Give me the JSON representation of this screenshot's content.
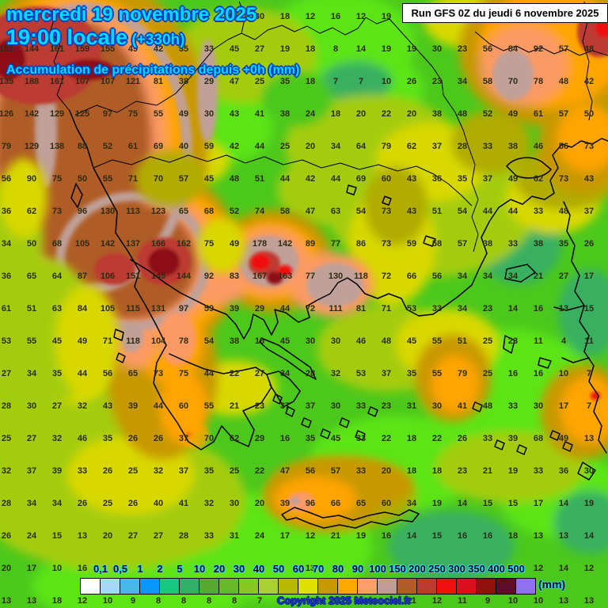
{
  "header": {
    "line1": "mercredi 19 novembre 2025",
    "line2": "19:00 locale",
    "line2_suffix": " (+330h)",
    "line3": "Accumulation de précipitations depuis +0h (mm)"
  },
  "run_box": {
    "text": "Run GFS 0Z du jeudi 6 novembre 2025"
  },
  "copyright": "Copyright 2025 Meteociel.fr",
  "legend": {
    "unit": "(mm)",
    "labels": [
      "0,1",
      "0,5",
      "1",
      "2",
      "5",
      "10",
      "20",
      "30",
      "40",
      "50",
      "60",
      "70",
      "80",
      "90",
      "100",
      "150",
      "200",
      "250",
      "300",
      "350",
      "400",
      "500"
    ],
    "swatch_colors": [
      "#ffffff",
      "#a8d8f8",
      "#48b8e8",
      "#0898ff",
      "#18c880",
      "#30b068",
      "#58a830",
      "#68b828",
      "#88c820",
      "#a8d030",
      "#b8b800",
      "#e0e000",
      "#c89800",
      "#ffa800",
      "#fc9e68",
      "#c49a94",
      "#b05c28",
      "#bc3a30",
      "#f01010",
      "#d81020",
      "#901010",
      "#600c28",
      "#9070f0"
    ]
  },
  "colors": {
    "header_text": "#00dcff",
    "header_outline": "#0040c0",
    "copyright_text": "#2030d8",
    "number_text": "#2c2c14",
    "map_base_green": "#4cc81c",
    "map_bright_green": "#5ce414",
    "map_teal_green": "#38b060",
    "map_yellow_green": "#a4cc10",
    "map_yellow": "#d8d800",
    "map_olive": "#b0ac00",
    "map_mustard": "#c89800",
    "map_orange": "#ffa400",
    "map_salmon": "#fc9a64",
    "map_rose_gray": "#c0a098",
    "map_sienna": "#b05c28",
    "map_brick": "#bc3a30",
    "map_red": "#f01010",
    "map_dark_red": "#8c0e14"
  },
  "map_numbers": {
    "rows": 19,
    "cols": 24,
    "values": [
      [
        "",
        "",
        "",
        "",
        "",
        "",
        "",
        "",
        "",
        "55",
        "30",
        "18",
        "12",
        "16",
        "12",
        "19",
        "",
        "",
        "",
        "",
        "",
        "",
        "",
        ""
      ],
      [
        "151",
        "144",
        "161",
        "159",
        "155",
        "49",
        "42",
        "35",
        "33",
        "45",
        "27",
        "19",
        "18",
        "8",
        "14",
        "19",
        "19",
        "30",
        "23",
        "56",
        "84",
        "92",
        "57",
        "48"
      ],
      [
        "135",
        "188",
        "161",
        "107",
        "107",
        "121",
        "81",
        "38",
        "29",
        "47",
        "25",
        "35",
        "18",
        "7",
        "7",
        "10",
        "26",
        "23",
        "34",
        "58",
        "70",
        "78",
        "48",
        "42"
      ],
      [
        "126",
        "142",
        "129",
        "125",
        "97",
        "75",
        "55",
        "49",
        "30",
        "43",
        "41",
        "38",
        "24",
        "18",
        "20",
        "22",
        "20",
        "38",
        "48",
        "52",
        "49",
        "61",
        "57",
        "50"
      ],
      [
        "79",
        "129",
        "138",
        "88",
        "52",
        "61",
        "69",
        "40",
        "59",
        "42",
        "44",
        "25",
        "20",
        "34",
        "64",
        "79",
        "62",
        "37",
        "28",
        "33",
        "38",
        "46",
        "56",
        "73"
      ],
      [
        "56",
        "90",
        "75",
        "50",
        "55",
        "71",
        "70",
        "57",
        "45",
        "48",
        "51",
        "44",
        "42",
        "44",
        "69",
        "60",
        "43",
        "36",
        "35",
        "37",
        "49",
        "62",
        "73",
        "43"
      ],
      [
        "36",
        "62",
        "73",
        "96",
        "130",
        "113",
        "123",
        "65",
        "68",
        "52",
        "74",
        "58",
        "47",
        "63",
        "54",
        "73",
        "43",
        "51",
        "54",
        "44",
        "44",
        "33",
        "48",
        "37"
      ],
      [
        "34",
        "50",
        "68",
        "105",
        "142",
        "137",
        "166",
        "162",
        "75",
        "49",
        "178",
        "142",
        "89",
        "77",
        "86",
        "73",
        "59",
        "58",
        "57",
        "38",
        "33",
        "38",
        "35",
        "26"
      ],
      [
        "36",
        "65",
        "64",
        "87",
        "106",
        "151",
        "145",
        "144",
        "92",
        "83",
        "167",
        "163",
        "77",
        "130",
        "118",
        "72",
        "66",
        "56",
        "34",
        "34",
        "34",
        "21",
        "27",
        "17"
      ],
      [
        "61",
        "51",
        "63",
        "84",
        "105",
        "115",
        "131",
        "97",
        "59",
        "39",
        "29",
        "44",
        "72",
        "111",
        "81",
        "71",
        "53",
        "33",
        "34",
        "23",
        "14",
        "16",
        "13",
        "15"
      ],
      [
        "53",
        "55",
        "45",
        "49",
        "71",
        "118",
        "104",
        "78",
        "54",
        "38",
        "16",
        "45",
        "30",
        "30",
        "46",
        "48",
        "45",
        "55",
        "51",
        "25",
        "23",
        "11",
        "4",
        "11"
      ],
      [
        "27",
        "34",
        "35",
        "44",
        "56",
        "65",
        "73",
        "75",
        "44",
        "22",
        "27",
        "34",
        "28",
        "32",
        "53",
        "37",
        "35",
        "55",
        "79",
        "25",
        "16",
        "16",
        "10",
        "7"
      ],
      [
        "28",
        "30",
        "27",
        "32",
        "43",
        "39",
        "44",
        "60",
        "55",
        "21",
        "23",
        "37",
        "37",
        "30",
        "33",
        "23",
        "31",
        "30",
        "41",
        "48",
        "33",
        "30",
        "17",
        "7"
      ],
      [
        "25",
        "27",
        "32",
        "46",
        "35",
        "26",
        "26",
        "37",
        "70",
        "62",
        "29",
        "16",
        "35",
        "45",
        "33",
        "22",
        "18",
        "22",
        "26",
        "33",
        "39",
        "68",
        "49",
        "13"
      ],
      [
        "32",
        "37",
        "39",
        "33",
        "26",
        "25",
        "32",
        "37",
        "35",
        "25",
        "22",
        "47",
        "56",
        "57",
        "33",
        "20",
        "18",
        "18",
        "23",
        "21",
        "19",
        "33",
        "36",
        "30"
      ],
      [
        "28",
        "34",
        "34",
        "26",
        "25",
        "26",
        "40",
        "41",
        "32",
        "30",
        "20",
        "39",
        "96",
        "66",
        "65",
        "60",
        "34",
        "19",
        "14",
        "15",
        "15",
        "17",
        "14",
        "19"
      ],
      [
        "26",
        "24",
        "15",
        "13",
        "20",
        "27",
        "27",
        "28",
        "33",
        "31",
        "24",
        "17",
        "12",
        "21",
        "19",
        "16",
        "14",
        "15",
        "16",
        "16",
        "18",
        "13",
        "13",
        "14"
      ],
      [
        "20",
        "17",
        "10",
        "16",
        "",
        "",
        "",
        "",
        "",
        "",
        "",
        "",
        "13",
        "",
        "",
        "",
        "",
        "",
        "",
        "",
        "",
        "12",
        "14",
        "12"
      ],
      [
        "13",
        "13",
        "18",
        "12",
        "10",
        "9",
        "8",
        "8",
        "8",
        "8",
        "7",
        "",
        "",
        "",
        "",
        "",
        "11",
        "12",
        "11",
        "9",
        "10",
        "10",
        "13",
        "13"
      ]
    ]
  }
}
